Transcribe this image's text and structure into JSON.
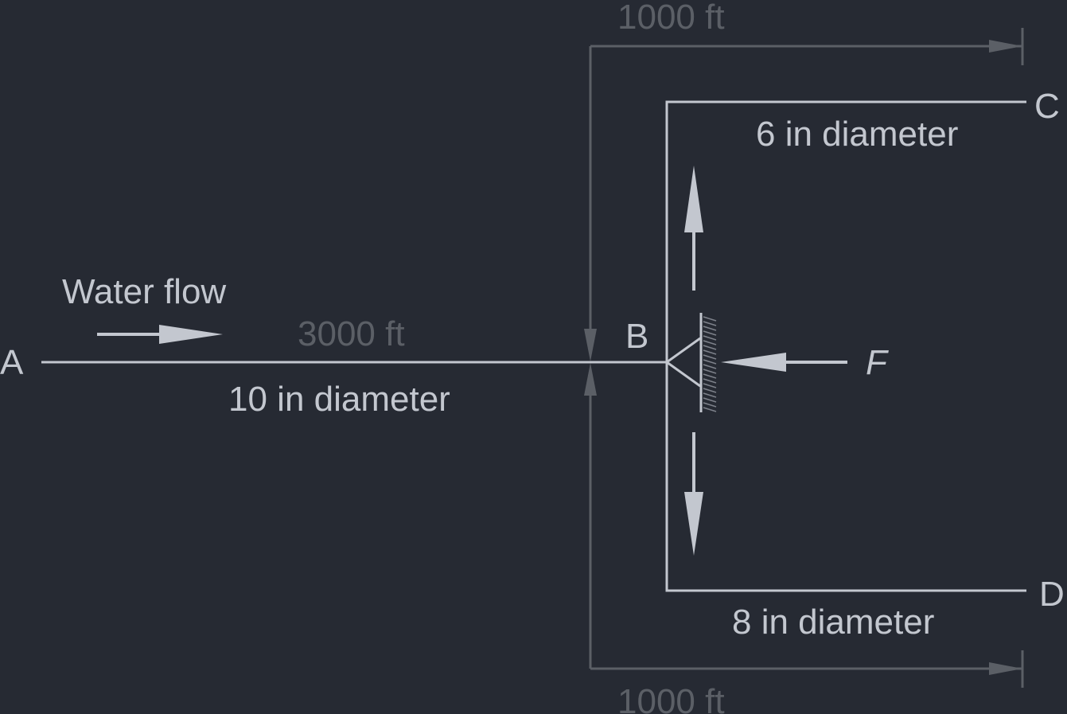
{
  "colors": {
    "background": "#262a33",
    "pipe": "#c3c7cf",
    "dimension": "#5b5f66"
  },
  "labels": {
    "water_flow": "Water flow",
    "point_a": "A",
    "point_b": "B",
    "point_c": "C",
    "point_d": "D",
    "force": "F"
  },
  "pipes": {
    "ab": {
      "length": "3000 ft",
      "diameter": "10 in diameter"
    },
    "bc": {
      "length": "1000 ft",
      "diameter": "6 in diameter"
    },
    "bd": {
      "length": "1000 ft",
      "diameter": "8 in diameter"
    }
  }
}
